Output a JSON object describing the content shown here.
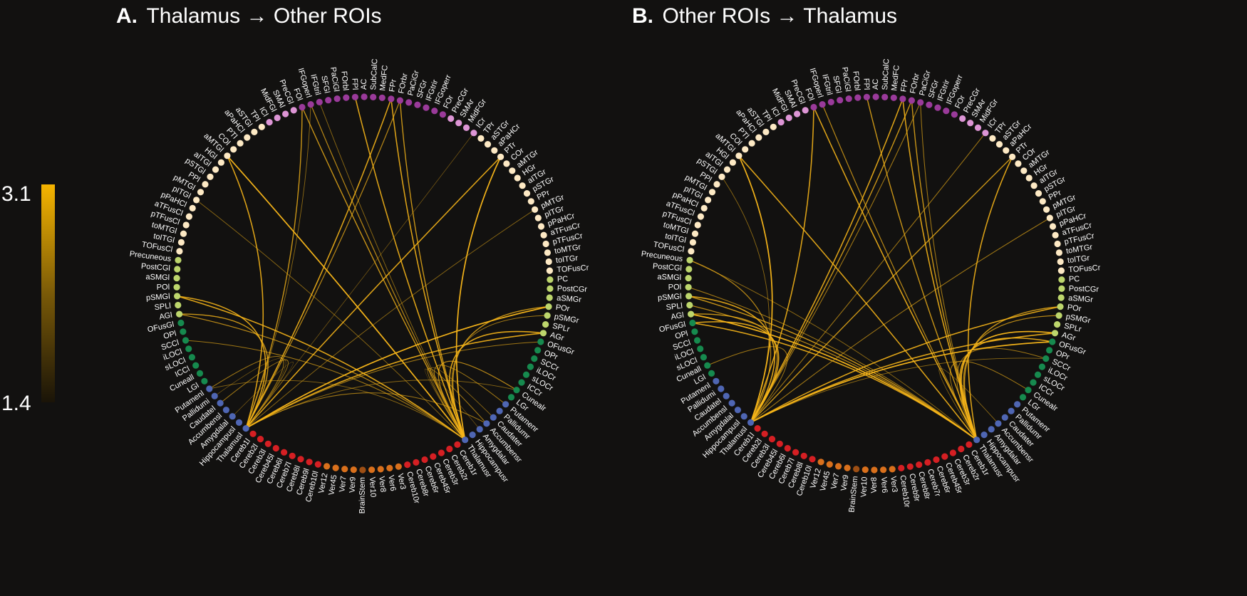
{
  "colorbar": {
    "max_label": "3.1",
    "min_label": "1.4",
    "color_high": "#f5b400",
    "color_low": "#1a1408"
  },
  "edge_color": "#f6b519",
  "group_colors": {
    "frontal_dark": "#9a3a9a",
    "frontal_light": "#dd95d5",
    "temporal": "#fde9c4",
    "parietal": "#bdd66c",
    "occipital": "#168a4e",
    "subcortical": "#4f66b3",
    "cerebellum": "#d51f23",
    "vermis": "#d9701c",
    "brainstem": "#9e4f14"
  },
  "chart_data": [
    {
      "type": "chord",
      "panel_letter": "A.",
      "title": "Thalamus → Other ROIs",
      "nodes": [
        "SubCalC",
        "MedFC",
        "FPr",
        "FOrbr",
        "PaCiGr",
        "SFGr",
        "IFGtrir",
        "IFGoperr",
        "FOr",
        "PreCGr",
        "SMAr",
        "MidFGr",
        "ICr",
        "TPr",
        "aSTGr",
        "aPaHCr",
        "PTr",
        "COr",
        "aMTGr",
        "HGr",
        "aITGr",
        "pSTGr",
        "PPr",
        "pMTGr",
        "pITGr",
        "pPaHCr",
        "aTFusCr",
        "pTFusCr",
        "toMTGr",
        "toITGr",
        "TOFusCr",
        "PC",
        "PostCGr",
        "aSMGr",
        "POr",
        "pSMGr",
        "SPLr",
        "AGr",
        "OFusGr",
        "OPr",
        "SCCr",
        "iLOCr",
        "sLOCr",
        "ICCr",
        "Cunealr",
        "LGr",
        "Putamenr",
        "Pallidumr",
        "Caudater",
        "Accumbensr",
        "Amygdalar",
        "Hippocampusr",
        "Thalamusr",
        "Cereb1r",
        "Cereb2r",
        "Cereb3r",
        "Cereb45r",
        "Cereb6r",
        "Cereb8r",
        "Cereb10r",
        "Ver3",
        "Ver6",
        "Ver8",
        "Ver10",
        "BrainStem",
        "Ver9",
        "Ver7",
        "Ver45",
        "Ver12",
        "Cereb10l",
        "Cereb9l",
        "Cereb8l",
        "Cereb7l",
        "Cereb6l",
        "Cereb45l",
        "Cereb3l",
        "Cereb2l",
        "Cereb1l",
        "Thalamusl",
        "Hippocampusl",
        "Amygdalal",
        "Accumbensl",
        "Caudatel",
        "Pallidumi",
        "Putamenl",
        "LGl",
        "Cuneall",
        "ICCl",
        "sLOCl",
        "iLOCl",
        "SCCl",
        "OPl",
        "OFusGl",
        "AGl",
        "SPLl",
        "pSMGl",
        "POl",
        "aSMGl",
        "PostCGl",
        "Precuneous",
        "TOFusCl",
        "toITGl",
        "toMTGl",
        "pTFusCl",
        "aTFusCl",
        "pPaHCl",
        "pITGl",
        "pMTGl",
        "PPl",
        "pSTGl",
        "aITGl",
        "HGl",
        "aMTGl",
        "COl",
        "PTl",
        "aPaHCl",
        "aSTGl",
        "TPl",
        "ICl",
        "MidFGl",
        "SMAl",
        "PreCGl",
        "FOl",
        "IFGoperl",
        "IFGtril",
        "SFGl",
        "PaCiGl",
        "FOrbl",
        "FPl",
        "AC"
      ],
      "edges": [
        [
          "Thalamusl",
          "FPr",
          2.9
        ],
        [
          "Thalamusl",
          "FOrbr",
          2.7
        ],
        [
          "Thalamusl",
          "PTr",
          2.9
        ],
        [
          "Thalamusl",
          "pMTGr",
          2.5
        ],
        [
          "Thalamusl",
          "POr",
          3.0
        ],
        [
          "Thalamusl",
          "AGr",
          2.9
        ],
        [
          "Thalamusl",
          "OFusGr",
          2.6
        ],
        [
          "Thalamusl",
          "Accumbensr",
          2.6
        ],
        [
          "Thalamusl",
          "pSMGl",
          2.9
        ],
        [
          "Thalamusl",
          "AGl",
          2.8
        ],
        [
          "Thalamusl",
          "aMTGl",
          2.9
        ],
        [
          "Thalamusl",
          "FOl",
          2.8
        ],
        [
          "Thalamusl",
          "IFGoperl",
          2.5
        ],
        [
          "Thalamusl",
          "Amygdalal",
          2.4
        ],
        [
          "Thalamusl",
          "Caudatel",
          2.6
        ],
        [
          "Thalamusl",
          "Pallidumi",
          2.4
        ],
        [
          "Thalamusl",
          "Putamenl",
          2.6
        ],
        [
          "Thalamusl",
          "ICr",
          2.4
        ],
        [
          "Thalamusl",
          "Cunealr",
          2.5
        ],
        [
          "Thalamusr",
          "FPl",
          2.9
        ],
        [
          "Thalamusr",
          "FOl",
          2.8
        ],
        [
          "Thalamusr",
          "IFGoperl",
          2.7
        ],
        [
          "Thalamusr",
          "IFGtril",
          2.5
        ],
        [
          "Thalamusr",
          "aMTGl",
          3.0
        ],
        [
          "Thalamusr",
          "pITGl",
          2.5
        ],
        [
          "Thalamusr",
          "pSMGl",
          2.9
        ],
        [
          "Thalamusr",
          "AGl",
          2.7
        ],
        [
          "Thalamusr",
          "SCCl",
          2.6
        ],
        [
          "Thalamusr",
          "FPr",
          2.9
        ],
        [
          "Thalamusr",
          "FOrbr",
          2.8
        ],
        [
          "Thalamusr",
          "PTr",
          3.0
        ],
        [
          "Thalamusr",
          "POr",
          2.8
        ],
        [
          "Thalamusr",
          "pSMGr",
          2.6
        ],
        [
          "Thalamusr",
          "AGr",
          2.9
        ],
        [
          "Thalamusr",
          "Cunealr",
          2.7
        ],
        [
          "Thalamusr",
          "Putamenr",
          2.6
        ],
        [
          "Thalamusr",
          "Caudater",
          2.5
        ],
        [
          "Thalamusr",
          "Amygdalar",
          2.4
        ],
        [
          "Thalamusr",
          "Putamenl",
          2.5
        ],
        [
          "Thalamusr",
          "Accumbensr",
          2.6
        ]
      ]
    },
    {
      "type": "chord",
      "panel_letter": "B.",
      "title": "Other ROIs → Thalamus",
      "nodes": [
        "SubCalC",
        "MedFC",
        "FPr",
        "FOrbr",
        "PaCiGr",
        "SFGr",
        "IFGtrir",
        "IFGoperr",
        "FOr",
        "PreCGr",
        "SMAr",
        "MidFGr",
        "ICr",
        "TPr",
        "aSTGr",
        "aPaHCr",
        "PTr",
        "COr",
        "aMTGr",
        "HGr",
        "aITGr",
        "pSTGr",
        "PPr",
        "pMTGr",
        "pITGr",
        "pPaHCr",
        "aTFusCr",
        "pTFusCr",
        "toMTGr",
        "toITGr",
        "TOFusCr",
        "PC",
        "PostCGr",
        "aSMGr",
        "POr",
        "pSMGr",
        "SPLr",
        "AGr",
        "OFusGr",
        "OPr",
        "SCCr",
        "iLOCr",
        "sLOCr",
        "ICCr",
        "Cunealr",
        "LGr",
        "Putamenr",
        "Pallidumr",
        "Caudater",
        "Accumbensr",
        "Amygdalar",
        "Hippocampusr",
        "Thalamusr",
        "Cereb1r",
        "Cereb2r",
        "Cereb3r",
        "Cereb45r",
        "Cereb6r",
        "Cereb7r",
        "Cereb8r",
        "Cereb9r",
        "Cereb10r",
        "Ver3",
        "Ver6",
        "Ver8",
        "Ver10",
        "BrainStem",
        "Ver9",
        "Ver7",
        "Ver45",
        "Ver12",
        "Cereb10l",
        "Cereb8l",
        "Cereb7l",
        "Cereb6l",
        "Cereb45l",
        "Cereb3l",
        "Cereb2l",
        "Cereb1l",
        "Thalamusl",
        "Hippocampusl",
        "Amygdalal",
        "Accumbensl",
        "Caudatel",
        "Pallidumi",
        "Putamenl",
        "LGl",
        "Cuneall",
        "sLOCl",
        "iLOCl",
        "SCCl",
        "OPl",
        "OFusGl",
        "AGl",
        "SPLl",
        "pSMGl",
        "POl",
        "aSMGl",
        "PostCGl",
        "Precuneous",
        "TOFusCl",
        "toITGl",
        "toMTGl",
        "pTFusCl",
        "aTFusCl",
        "pPaHCl",
        "pITGl",
        "pMTGl",
        "PPl",
        "pSTGl",
        "aITGl",
        "HGl",
        "aMTGl",
        "COl",
        "PTl",
        "aPaHCl",
        "aSTGl",
        "TPl",
        "ICl",
        "MidFGl",
        "SMAl",
        "PreCGl",
        "FOl",
        "IFGoperl",
        "IFGtril",
        "SFGl",
        "PaCiGl",
        "FOrbl",
        "FPl",
        "AC"
      ],
      "edges": [
        [
          "Thalamusl",
          "FPr",
          2.9
        ],
        [
          "Thalamusl",
          "FOrbr",
          2.8
        ],
        [
          "Thalamusl",
          "PaCiGr",
          2.6
        ],
        [
          "Thalamusl",
          "FOl",
          2.9
        ],
        [
          "Thalamusl",
          "aMTGl",
          3.0
        ],
        [
          "Thalamusl",
          "pSTGl",
          2.5
        ],
        [
          "Thalamusl",
          "Precuneous",
          2.7
        ],
        [
          "Thalamusl",
          "pSMGl",
          2.9
        ],
        [
          "Thalamusl",
          "AGl",
          2.8
        ],
        [
          "Thalamusl",
          "OFusGl",
          2.9
        ],
        [
          "Thalamusl",
          "ICCl",
          2.5
        ],
        [
          "Thalamusl",
          "Cuneall",
          2.6
        ],
        [
          "Thalamusl",
          "POr",
          2.9
        ],
        [
          "Thalamusl",
          "AGr",
          2.9
        ],
        [
          "Thalamusl",
          "OFusGr",
          3.0
        ],
        [
          "Thalamusl",
          "pITGr",
          2.6
        ],
        [
          "Thalamusl",
          "PTr",
          2.8
        ],
        [
          "Thalamusl",
          "ICr",
          2.6
        ],
        [
          "Thalamusl",
          "SCCr",
          2.5
        ],
        [
          "Thalamusr",
          "FPl",
          2.8
        ],
        [
          "Thalamusr",
          "FOl",
          2.9
        ],
        [
          "Thalamusr",
          "IFGoperl",
          2.7
        ],
        [
          "Thalamusr",
          "aMTGl",
          2.9
        ],
        [
          "Thalamusr",
          "AGl",
          3.0
        ],
        [
          "Thalamusr",
          "OFusGl",
          2.9
        ],
        [
          "Thalamusr",
          "pSMGl",
          2.8
        ],
        [
          "Thalamusr",
          "POl",
          2.6
        ],
        [
          "Thalamusr",
          "SPLl",
          2.7
        ],
        [
          "Thalamusr",
          "Precuneous",
          2.5
        ],
        [
          "Thalamusr",
          "FPr",
          2.9
        ],
        [
          "Thalamusr",
          "FOrbr",
          2.8
        ],
        [
          "Thalamusr",
          "PaCiGr",
          2.6
        ],
        [
          "Thalamusr",
          "PTr",
          2.9
        ],
        [
          "Thalamusr",
          "POr",
          2.8
        ],
        [
          "Thalamusr",
          "pSMGr",
          2.7
        ],
        [
          "Thalamusr",
          "AGr",
          3.0
        ],
        [
          "Thalamusr",
          "OFusGr",
          2.9
        ],
        [
          "Thalamusr",
          "Cunealr",
          2.6
        ],
        [
          "Thalamusr",
          "SCCr",
          2.6
        ],
        [
          "Thalamusr",
          "Accumbensr",
          2.5
        ]
      ]
    }
  ]
}
